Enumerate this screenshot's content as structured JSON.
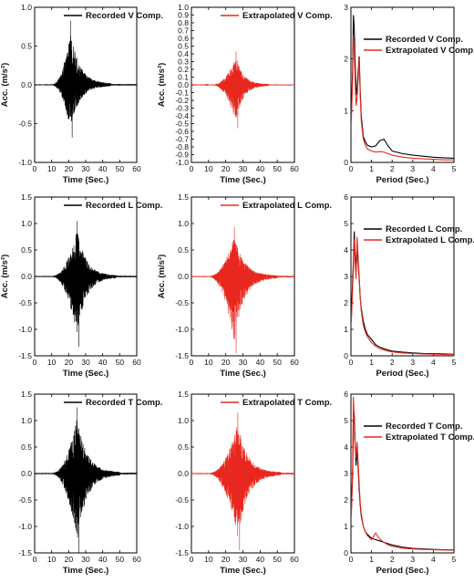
{
  "colors": {
    "recorded": "#000000",
    "extrapolated": "#e8281e"
  },
  "chart_data": [
    {
      "id": "row1-recorded",
      "type": "line",
      "row": 0,
      "col": 0,
      "xlabel": "Time (Sec.)",
      "ylabel": "Acc. (m/s²)",
      "xlim": [
        0,
        60
      ],
      "ylim": [
        -1.0,
        1.0
      ],
      "xticks": [
        "0",
        "10",
        "20",
        "30",
        "40",
        "50",
        "60"
      ],
      "yticks": [
        "-1.0",
        "-0.5",
        "0.0",
        "0.5",
        "1.0"
      ],
      "legend": [
        "Recorded V Comp."
      ],
      "legend_position": "top-right",
      "series": [
        {
          "name": "Recorded V Comp.",
          "color": "#000000",
          "envelope": {
            "start": 10,
            "peak": 21,
            "end": 45,
            "max_pos": 0.83,
            "max_neg": -0.68
          }
        }
      ]
    },
    {
      "id": "row1-extrapolated",
      "type": "line",
      "row": 0,
      "col": 1,
      "xlabel": "Time (Sec.)",
      "ylabel": "Acc. (m/s²)",
      "xlim": [
        0,
        60
      ],
      "ylim": [
        -1.0,
        1.0
      ],
      "xticks": [
        "0",
        "10",
        "20",
        "30",
        "40",
        "50",
        "60"
      ],
      "yticks": [
        "-1.0",
        "-0.9",
        "-0.8",
        "-0.7",
        "-0.6",
        "-0.5",
        "-0.4",
        "-0.3",
        "-0.2",
        "-0.1",
        "0.0",
        "0.1",
        "0.2",
        "0.3",
        "0.4",
        "0.5",
        "0.6",
        "0.7",
        "0.8",
        "0.9",
        "1.0"
      ],
      "legend": [
        "Extrapolated V Comp."
      ],
      "legend_position": "top-right",
      "series": [
        {
          "name": "Extrapolated V Comp.",
          "color": "#e8281e",
          "envelope": {
            "start": 12,
            "peak": 26,
            "end": 45,
            "max_pos": 0.43,
            "max_neg": -0.56
          }
        }
      ]
    },
    {
      "id": "row1-spectrum",
      "type": "line",
      "row": 0,
      "col": 2,
      "xlabel": "Period (Sec.)",
      "ylabel": "",
      "xlim": [
        0,
        5
      ],
      "ylim": [
        0,
        3
      ],
      "xticks": [
        "0",
        "1",
        "2",
        "3",
        "4",
        "5"
      ],
      "yticks": [
        "0",
        "1",
        "2",
        "3"
      ],
      "legend": [
        "Recorded V Comp.",
        "Extrapolated V Comp."
      ],
      "legend_position": "top-right",
      "series": [
        {
          "name": "Recorded V Comp.",
          "color": "#000000",
          "x": [
            0.02,
            0.08,
            0.12,
            0.16,
            0.2,
            0.25,
            0.3,
            0.35,
            0.4,
            0.45,
            0.5,
            0.6,
            0.7,
            0.8,
            1.0,
            1.2,
            1.4,
            1.6,
            1.8,
            2.0,
            2.5,
            3.0,
            3.5,
            4.0,
            4.5,
            5.0
          ],
          "y": [
            0.9,
            1.8,
            2.85,
            2.6,
            2.0,
            1.3,
            1.45,
            1.75,
            2.05,
            1.4,
            0.9,
            0.5,
            0.4,
            0.33,
            0.3,
            0.32,
            0.42,
            0.45,
            0.32,
            0.22,
            0.17,
            0.14,
            0.12,
            0.1,
            0.09,
            0.08
          ]
        },
        {
          "name": "Extrapolated V Comp.",
          "color": "#e8281e",
          "x": [
            0.02,
            0.08,
            0.12,
            0.16,
            0.2,
            0.25,
            0.3,
            0.35,
            0.4,
            0.45,
            0.5,
            0.6,
            0.7,
            0.8,
            1.0,
            1.2,
            1.4,
            1.6,
            1.8,
            2.0,
            2.5,
            3.0,
            3.5,
            4.0,
            4.5,
            5.0
          ],
          "y": [
            0.8,
            1.6,
            2.45,
            2.2,
            1.6,
            1.1,
            1.25,
            1.6,
            2.0,
            1.3,
            0.8,
            0.45,
            0.33,
            0.26,
            0.22,
            0.2,
            0.21,
            0.2,
            0.17,
            0.14,
            0.1,
            0.08,
            0.07,
            0.06,
            0.05,
            0.05
          ]
        }
      ]
    },
    {
      "id": "row2-recorded",
      "type": "line",
      "row": 1,
      "col": 0,
      "xlabel": "Time (Sec.)",
      "ylabel": "Acc. (m/s²)",
      "xlim": [
        0,
        60
      ],
      "ylim": [
        -1.5,
        1.5
      ],
      "xticks": [
        "0",
        "10",
        "20",
        "30",
        "40",
        "50",
        "60"
      ],
      "yticks": [
        "-1.5",
        "-1.0",
        "-0.5",
        "0.0",
        "0.5",
        "1.0",
        "1.5"
      ],
      "legend": [
        "Recorded L Comp."
      ],
      "legend_position": "top-right",
      "series": [
        {
          "name": "Recorded L Comp.",
          "color": "#000000",
          "envelope": {
            "start": 10,
            "peak": 25,
            "end": 48,
            "max_pos": 1.05,
            "max_neg": -1.33
          }
        }
      ]
    },
    {
      "id": "row2-extrapolated",
      "type": "line",
      "row": 1,
      "col": 1,
      "xlabel": "Time (Sec.)",
      "ylabel": "Acc. (m/s²)",
      "xlim": [
        0,
        60
      ],
      "ylim": [
        -1.5,
        1.5
      ],
      "xticks": [
        "0",
        "10",
        "20",
        "30",
        "40",
        "50",
        "60"
      ],
      "yticks": [
        "-1.5",
        "-1.0",
        "-0.5",
        "0.0",
        "0.5",
        "1.0",
        "1.5"
      ],
      "legend": [
        "Extrapolated L Comp."
      ],
      "legend_position": "top-right",
      "series": [
        {
          "name": "Extrapolated L Comp.",
          "color": "#e8281e",
          "envelope": {
            "start": 10,
            "peak": 25,
            "end": 50,
            "max_pos": 0.93,
            "max_neg": -1.45
          }
        }
      ]
    },
    {
      "id": "row2-spectrum",
      "type": "line",
      "row": 1,
      "col": 2,
      "xlabel": "Period (Sec.)",
      "ylabel": "",
      "xlim": [
        0,
        5
      ],
      "ylim": [
        0,
        6
      ],
      "xticks": [
        "0",
        "1",
        "2",
        "3",
        "4",
        "5"
      ],
      "yticks": [
        "0",
        "1",
        "2",
        "3",
        "4",
        "5",
        "6"
      ],
      "legend": [
        "Recorded L Comp.",
        "Extrapolated L Comp."
      ],
      "legend_position": "top-right",
      "series": [
        {
          "name": "Recorded L Comp.",
          "color": "#000000",
          "x": [
            0.02,
            0.08,
            0.12,
            0.16,
            0.2,
            0.25,
            0.3,
            0.35,
            0.4,
            0.45,
            0.5,
            0.6,
            0.7,
            0.8,
            1.0,
            1.2,
            1.4,
            1.6,
            1.8,
            2.0,
            2.5,
            3.0,
            3.5,
            4.0,
            4.5,
            5.0
          ],
          "y": [
            1.5,
            2.8,
            3.6,
            4.7,
            3.9,
            3.2,
            4.2,
            3.5,
            2.9,
            2.2,
            1.8,
            1.3,
            1.0,
            0.8,
            0.62,
            0.42,
            0.33,
            0.27,
            0.22,
            0.18,
            0.14,
            0.11,
            0.09,
            0.08,
            0.07,
            0.06
          ]
        },
        {
          "name": "Extrapolated L Comp.",
          "color": "#e8281e",
          "x": [
            0.02,
            0.08,
            0.12,
            0.16,
            0.2,
            0.25,
            0.3,
            0.35,
            0.4,
            0.45,
            0.5,
            0.6,
            0.7,
            0.8,
            1.0,
            1.2,
            1.4,
            1.6,
            1.8,
            2.0,
            2.5,
            3.0,
            3.5,
            4.0,
            4.5,
            5.0
          ],
          "y": [
            1.3,
            2.5,
            3.3,
            4.4,
            3.6,
            2.9,
            4.5,
            3.7,
            3.0,
            2.2,
            1.7,
            1.15,
            0.9,
            0.72,
            0.5,
            0.36,
            0.27,
            0.22,
            0.18,
            0.15,
            0.11,
            0.09,
            0.07,
            0.06,
            0.05,
            0.05
          ]
        }
      ]
    },
    {
      "id": "row3-recorded",
      "type": "line",
      "row": 2,
      "col": 0,
      "xlabel": "Time (Sec.)",
      "ylabel": "",
      "xlim": [
        0,
        60
      ],
      "ylim": [
        -1.5,
        1.5
      ],
      "xticks": [
        "0",
        "10",
        "20",
        "30",
        "40",
        "50",
        "60"
      ],
      "yticks": [
        "-1.5",
        "-1.0",
        "-0.5",
        "0.0",
        "0.5",
        "1.0",
        "1.5"
      ],
      "legend": [
        "Recorded T Comp."
      ],
      "legend_position": "top-right",
      "series": [
        {
          "name": "Recorded T Comp.",
          "color": "#000000",
          "envelope": {
            "start": 10,
            "peak": 25,
            "end": 50,
            "max_pos": 1.25,
            "max_neg": -1.5
          }
        }
      ]
    },
    {
      "id": "row3-extrapolated",
      "type": "line",
      "row": 2,
      "col": 1,
      "xlabel": "Time (Sec.)",
      "ylabel": "",
      "xlim": [
        0,
        60
      ],
      "ylim": [
        -1.5,
        1.5
      ],
      "xticks": [
        "0",
        "10",
        "20",
        "30",
        "40",
        "50",
        "60"
      ],
      "yticks": [
        "-1.5",
        "-1.0",
        "-0.5",
        "0.0",
        "0.5",
        "1.0",
        "1.5"
      ],
      "legend": [
        "Extrapolated T Comp."
      ],
      "legend_position": "top-right",
      "series": [
        {
          "name": "Extrapolated T Comp.",
          "color": "#e8281e",
          "envelope": {
            "start": 10,
            "peak": 27,
            "end": 52,
            "max_pos": 1.15,
            "max_neg": -1.45
          }
        }
      ]
    },
    {
      "id": "row3-spectrum",
      "type": "line",
      "row": 2,
      "col": 2,
      "xlabel": "Period (Sec.)",
      "ylabel": "",
      "xlim": [
        0,
        5
      ],
      "ylim": [
        0,
        6
      ],
      "xticks": [
        "0",
        "1",
        "2",
        "3",
        "4",
        "5"
      ],
      "yticks": [
        "0",
        "1",
        "2",
        "3",
        "4",
        "5",
        "6"
      ],
      "legend": [
        "Recorded T Comp.",
        "Extrapolated T Comp."
      ],
      "legend_position": "top-right",
      "series": [
        {
          "name": "Recorded T Comp.",
          "color": "#000000",
          "x": [
            0.02,
            0.08,
            0.12,
            0.16,
            0.2,
            0.25,
            0.3,
            0.35,
            0.4,
            0.45,
            0.5,
            0.6,
            0.7,
            0.8,
            1.0,
            1.2,
            1.4,
            1.6,
            1.8,
            2.0,
            2.5,
            3.0,
            3.5,
            4.0,
            4.5,
            5.0
          ],
          "y": [
            1.6,
            2.9,
            4.8,
            5.3,
            4.2,
            3.3,
            4.0,
            3.2,
            2.4,
            1.8,
            1.4,
            1.0,
            0.8,
            0.7,
            0.55,
            0.5,
            0.45,
            0.4,
            0.35,
            0.3,
            0.22,
            0.17,
            0.15,
            0.13,
            0.12,
            0.11
          ]
        },
        {
          "name": "Extrapolated T Comp.",
          "color": "#e8281e",
          "x": [
            0.02,
            0.08,
            0.12,
            0.16,
            0.2,
            0.25,
            0.3,
            0.35,
            0.4,
            0.45,
            0.5,
            0.6,
            0.7,
            0.8,
            1.0,
            1.2,
            1.4,
            1.6,
            1.8,
            2.0,
            2.5,
            3.0,
            3.5,
            4.0,
            4.5,
            5.0
          ],
          "y": [
            1.4,
            3.2,
            5.9,
            5.1,
            4.0,
            3.6,
            4.2,
            3.4,
            2.6,
            1.9,
            1.5,
            1.0,
            0.8,
            0.65,
            0.5,
            0.75,
            0.52,
            0.4,
            0.3,
            0.25,
            0.18,
            0.15,
            0.13,
            0.12,
            0.11,
            0.1
          ]
        }
      ]
    }
  ]
}
